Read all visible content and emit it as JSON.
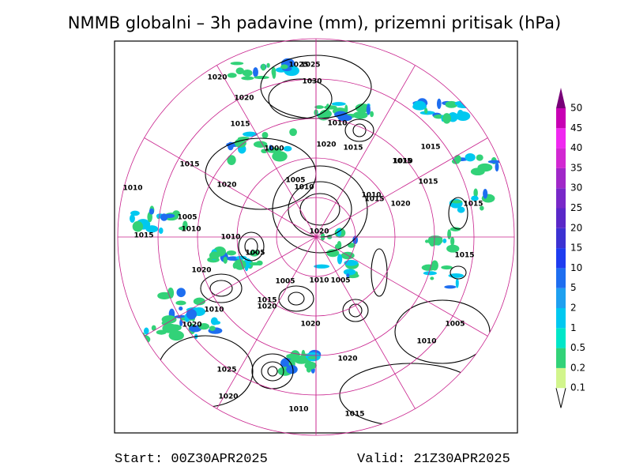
{
  "header": {
    "title": "NMMB globalni – 3h padavine (mm), prizemni pritisak (hPa)"
  },
  "legend": {
    "levels": [
      0.1,
      0.2,
      0.5,
      1,
      2,
      5,
      10,
      15,
      20,
      25,
      30,
      35,
      40,
      45,
      50
    ],
    "colors": [
      "#d2f58c",
      "#32d278",
      "#00e6c8",
      "#00c8f0",
      "#1ea0f0",
      "#1e6ef0",
      "#1e3cf0",
      "#3c32d2",
      "#5a28c8",
      "#7828c8",
      "#a028c8",
      "#d228d2",
      "#f028f0",
      "#c800b4",
      "#780078"
    ]
  },
  "isobars": {
    "labels": [
      1025,
      1030,
      1020,
      1020,
      1015,
      1010,
      1015,
      1020,
      1000,
      1005,
      1010,
      1020,
      1015,
      1010,
      1015,
      1015,
      1010,
      1005,
      1015,
      1010,
      1015,
      1005,
      1010,
      1020,
      1025,
      1015,
      1015,
      1020,
      1020,
      1010,
      1005,
      1015,
      1020,
      1010,
      1015,
      1020,
      1020,
      1010,
      1005,
      1025,
      1020,
      1010,
      1015,
      1020,
      1010,
      1005
    ]
  },
  "footer": {
    "start": "Start: 00Z30APR2025",
    "valid": "Valid: 21Z30APR2025"
  }
}
